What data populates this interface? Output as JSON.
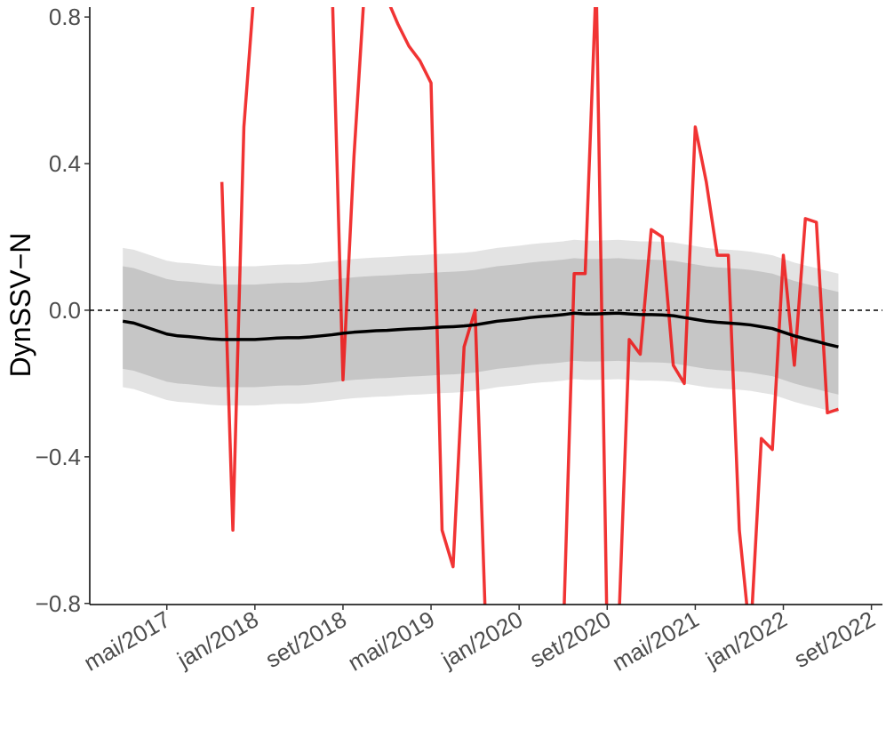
{
  "chart_data": {
    "type": "line",
    "y_label": "DynSSV−N",
    "x": [
      "2017-01",
      "2017-02",
      "2017-03",
      "2017-04",
      "2017-05",
      "2017-06",
      "2017-07",
      "2017-08",
      "2017-09",
      "2017-10",
      "2017-11",
      "2017-12",
      "2018-01",
      "2018-02",
      "2018-03",
      "2018-04",
      "2018-05",
      "2018-06",
      "2018-07",
      "2018-08",
      "2018-09",
      "2018-10",
      "2018-11",
      "2018-12",
      "2019-01",
      "2019-02",
      "2019-03",
      "2019-04",
      "2019-05",
      "2019-06",
      "2019-07",
      "2019-08",
      "2019-09",
      "2019-10",
      "2019-11",
      "2019-12",
      "2020-01",
      "2020-02",
      "2020-03",
      "2020-04",
      "2020-05",
      "2020-06",
      "2020-07",
      "2020-08",
      "2020-09",
      "2020-10",
      "2020-11",
      "2020-12",
      "2021-01",
      "2021-02",
      "2021-03",
      "2021-04",
      "2021-05",
      "2021-06",
      "2021-07",
      "2021-08",
      "2021-09",
      "2021-10",
      "2021-11",
      "2021-12",
      "2022-01",
      "2022-02",
      "2022-03",
      "2022-04",
      "2022-05",
      "2022-06"
    ],
    "bands": [
      {
        "color": "#e3e3e3",
        "upper": [
          0.17,
          0.165,
          0.155,
          0.145,
          0.135,
          0.13,
          0.128,
          0.125,
          0.122,
          0.12,
          0.12,
          0.12,
          0.12,
          0.122,
          0.124,
          0.125,
          0.125,
          0.127,
          0.13,
          0.133,
          0.137,
          0.14,
          0.142,
          0.144,
          0.145,
          0.147,
          0.149,
          0.15,
          0.152,
          0.154,
          0.155,
          0.157,
          0.16,
          0.165,
          0.17,
          0.173,
          0.176,
          0.18,
          0.183,
          0.185,
          0.188,
          0.192,
          0.19,
          0.19,
          0.191,
          0.192,
          0.19,
          0.188,
          0.188,
          0.187,
          0.185,
          0.18,
          0.175,
          0.17,
          0.167,
          0.165,
          0.163,
          0.16,
          0.155,
          0.15,
          0.14,
          0.13,
          0.122,
          0.115,
          0.107,
          0.1
        ],
        "lower": [
          -0.21,
          -0.215,
          -0.225,
          -0.235,
          -0.245,
          -0.25,
          -0.252,
          -0.255,
          -0.258,
          -0.26,
          -0.26,
          -0.26,
          -0.26,
          -0.258,
          -0.256,
          -0.255,
          -0.255,
          -0.253,
          -0.25,
          -0.247,
          -0.243,
          -0.24,
          -0.238,
          -0.236,
          -0.235,
          -0.233,
          -0.231,
          -0.23,
          -0.228,
          -0.226,
          -0.225,
          -0.223,
          -0.22,
          -0.215,
          -0.21,
          -0.207,
          -0.204,
          -0.2,
          -0.197,
          -0.195,
          -0.192,
          -0.188,
          -0.19,
          -0.19,
          -0.189,
          -0.188,
          -0.19,
          -0.192,
          -0.192,
          -0.193,
          -0.195,
          -0.2,
          -0.205,
          -0.21,
          -0.213,
          -0.215,
          -0.217,
          -0.22,
          -0.225,
          -0.23,
          -0.24,
          -0.25,
          -0.258,
          -0.265,
          -0.273,
          -0.28
        ]
      },
      {
        "color": "#c6c6c6",
        "upper": [
          0.12,
          0.115,
          0.105,
          0.095,
          0.085,
          0.08,
          0.078,
          0.075,
          0.072,
          0.07,
          0.07,
          0.07,
          0.07,
          0.072,
          0.074,
          0.075,
          0.075,
          0.077,
          0.08,
          0.083,
          0.087,
          0.09,
          0.092,
          0.094,
          0.095,
          0.097,
          0.099,
          0.1,
          0.102,
          0.104,
          0.105,
          0.107,
          0.11,
          0.115,
          0.12,
          0.123,
          0.126,
          0.13,
          0.133,
          0.135,
          0.138,
          0.142,
          0.14,
          0.14,
          0.141,
          0.142,
          0.14,
          0.138,
          0.138,
          0.137,
          0.135,
          0.13,
          0.125,
          0.12,
          0.117,
          0.115,
          0.113,
          0.11,
          0.105,
          0.1,
          0.09,
          0.08,
          0.072,
          0.065,
          0.057,
          0.05
        ],
        "lower": [
          -0.16,
          -0.165,
          -0.175,
          -0.185,
          -0.195,
          -0.2,
          -0.202,
          -0.205,
          -0.208,
          -0.21,
          -0.21,
          -0.21,
          -0.21,
          -0.208,
          -0.206,
          -0.205,
          -0.205,
          -0.203,
          -0.2,
          -0.197,
          -0.193,
          -0.19,
          -0.188,
          -0.186,
          -0.185,
          -0.183,
          -0.181,
          -0.18,
          -0.178,
          -0.176,
          -0.175,
          -0.173,
          -0.17,
          -0.165,
          -0.16,
          -0.157,
          -0.154,
          -0.15,
          -0.147,
          -0.145,
          -0.142,
          -0.138,
          -0.14,
          -0.14,
          -0.139,
          -0.138,
          -0.14,
          -0.142,
          -0.142,
          -0.143,
          -0.145,
          -0.15,
          -0.155,
          -0.16,
          -0.163,
          -0.165,
          -0.167,
          -0.17,
          -0.175,
          -0.18,
          -0.19,
          -0.2,
          -0.208,
          -0.215,
          -0.223,
          -0.23
        ]
      }
    ],
    "series": [
      {
        "color": "#ee1111",
        "values": [
          null,
          null,
          null,
          null,
          null,
          null,
          null,
          null,
          null,
          0.35,
          -0.6,
          0.5,
          0.9,
          0.9,
          0.9,
          0.9,
          0.9,
          0.9,
          0.9,
          0.9,
          -0.19,
          0.42,
          0.9,
          0.9,
          0.85,
          0.78,
          0.72,
          0.68,
          0.62,
          -0.6,
          -0.7,
          -0.1,
          0.0,
          -0.9,
          -0.9,
          -0.9,
          -0.9,
          -0.9,
          -0.9,
          -0.9,
          -0.9,
          0.1,
          0.1,
          0.9,
          -0.9,
          -0.9,
          -0.08,
          -0.12,
          0.22,
          0.2,
          -0.15,
          -0.2,
          0.5,
          0.35,
          0.15,
          0.15,
          -0.6,
          -0.9,
          -0.35,
          -0.38,
          0.15,
          -0.15,
          0.25,
          0.24,
          -0.28,
          -0.27
        ]
      },
      {
        "color": "#000000",
        "values": [
          -0.03,
          -0.035,
          -0.045,
          -0.055,
          -0.065,
          -0.07,
          -0.072,
          -0.075,
          -0.078,
          -0.08,
          -0.08,
          -0.08,
          -0.08,
          -0.078,
          -0.076,
          -0.075,
          -0.075,
          -0.073,
          -0.07,
          -0.067,
          -0.063,
          -0.06,
          -0.058,
          -0.056,
          -0.055,
          -0.053,
          -0.051,
          -0.05,
          -0.048,
          -0.046,
          -0.045,
          -0.043,
          -0.04,
          -0.035,
          -0.03,
          -0.027,
          -0.024,
          -0.02,
          -0.017,
          -0.015,
          -0.012,
          -0.008,
          -0.01,
          -0.01,
          -0.009,
          -0.008,
          -0.01,
          -0.012,
          -0.012,
          -0.013,
          -0.015,
          -0.02,
          -0.025,
          -0.03,
          -0.033,
          -0.035,
          -0.037,
          -0.04,
          -0.045,
          -0.05,
          -0.06,
          -0.07,
          -0.078,
          -0.085,
          -0.093,
          -0.1
        ]
      }
    ],
    "hline": 0,
    "xlim": [
      "2016-10",
      "2022-10"
    ],
    "xticks": [
      {
        "value": "2017-05",
        "label": "mai/2017"
      },
      {
        "value": "2018-01",
        "label": "jan/2018"
      },
      {
        "value": "2018-09",
        "label": "set/2018"
      },
      {
        "value": "2019-05",
        "label": "mai/2019"
      },
      {
        "value": "2020-01",
        "label": "jan/2020"
      },
      {
        "value": "2020-09",
        "label": "set/2020"
      },
      {
        "value": "2021-05",
        "label": "mai/2021"
      },
      {
        "value": "2022-01",
        "label": "jan/2022"
      },
      {
        "value": "2022-09",
        "label": "set/2022"
      }
    ],
    "ylim": [
      -0.803,
      0.827
    ],
    "yticks": [
      {
        "value": -0.8,
        "label": "−0.8"
      },
      {
        "value": -0.4,
        "label": "−0.4"
      },
      {
        "value": 0,
        "label": "0.0"
      },
      {
        "value": 0.4,
        "label": "0.4"
      },
      {
        "value": 0.8,
        "label": "0.8"
      }
    ]
  }
}
